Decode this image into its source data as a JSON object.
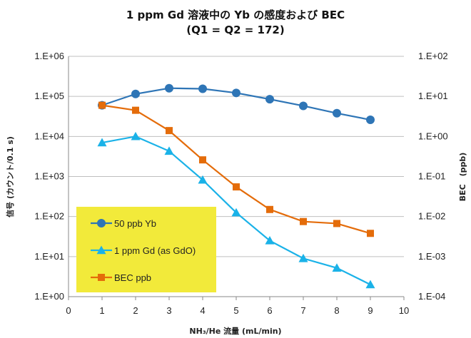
{
  "chart_data": {
    "type": "line",
    "title": "1 ppm Gd 溶液中の Yb の感度および BEC",
    "subtitle": "(Q1 = Q2 = 172)",
    "xlabel": "NH₃/He 流量 (mL/min)",
    "ylabel_left": "信号 (カウント/0.1 s)",
    "ylabel_right": "BEC　(ppb)",
    "xlim": [
      0,
      10
    ],
    "x_ticks": [
      "0",
      "1",
      "2",
      "3",
      "4",
      "5",
      "6",
      "7",
      "8",
      "9",
      "10"
    ],
    "ylim_left": [
      1,
      1000000
    ],
    "ylim_right": [
      0.0001,
      100
    ],
    "y_scale": "log",
    "y_ticks_left": [
      "1.E+00",
      "1.E+01",
      "1.E+02",
      "1.E+03",
      "1.E+04",
      "1.E+05",
      "1.E+06"
    ],
    "y_ticks_right": [
      "1.E-04",
      "1.E-03",
      "1.E-02",
      "1.E-01",
      "1.E+00",
      "1.E+01",
      "1.E+02"
    ],
    "grid": "horizontal",
    "legend_position": "bottom-left",
    "x": [
      1,
      2,
      3,
      4,
      5,
      6,
      7,
      8,
      9
    ],
    "series": [
      {
        "name": "50 ppb Yb",
        "axis": "left",
        "marker": "circle",
        "color": "#2e75b6",
        "values": [
          60000,
          115000,
          160000,
          155000,
          122000,
          85000,
          58000,
          38000,
          26000
        ]
      },
      {
        "name": "1 ppm Gd (as GdO)",
        "axis": "left",
        "marker": "triangle",
        "color": "#1ab2e8",
        "values": [
          7000,
          10000,
          4300,
          820,
          125,
          25,
          9,
          5.2,
          2
        ]
      },
      {
        "name": "BEC ppb",
        "axis": "right",
        "marker": "square",
        "color": "#e46c0a",
        "values": [
          6,
          4.5,
          1.4,
          0.26,
          0.055,
          0.015,
          0.0075,
          0.0067,
          0.0038
        ]
      }
    ]
  },
  "legend_bg": "#f2ea3a"
}
